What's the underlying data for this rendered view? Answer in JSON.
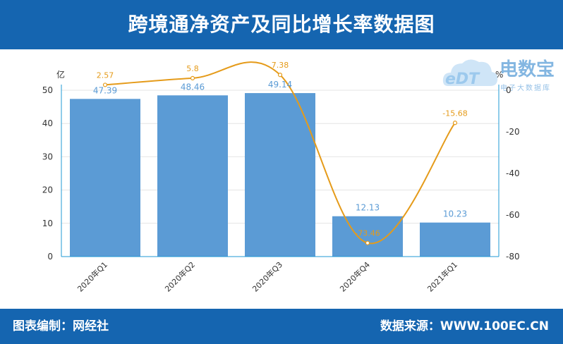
{
  "header": {
    "title": "跨境通净资产及同比增长率数据图"
  },
  "footer": {
    "left": "图表编制：网经社",
    "right": "数据来源：WWW.100EC.CN"
  },
  "logo": {
    "main": "电数宝",
    "sub": "电子大数据库",
    "edt": "eDT"
  },
  "colors": {
    "bar": "#5b9bd5",
    "line": "#e59b1a",
    "bar_label": "#5b9bd5",
    "line_label": "#e59b1a",
    "band": "#1565b0"
  },
  "chart_data": {
    "type": "bar",
    "categories": [
      "2020年Q1",
      "2020年Q2",
      "2020年Q3",
      "2020年Q4",
      "2021年Q1"
    ],
    "series": [
      {
        "type": "bar",
        "values": [
          47.39,
          48.46,
          49.14,
          12.13,
          10.23
        ],
        "axis": "left"
      },
      {
        "type": "line",
        "values": [
          2.57,
          5.8,
          7.38,
          -73.46,
          -15.68
        ],
        "axis": "right"
      }
    ],
    "y_left": {
      "unit": "亿",
      "min": 0,
      "max": 50,
      "ticks": [
        0,
        10,
        20,
        30,
        40,
        50
      ]
    },
    "y_right": {
      "unit": "%",
      "min": -80,
      "max": 0,
      "ticks": [
        -80,
        -60,
        -40,
        -20,
        0
      ]
    },
    "grid": true,
    "legend": "none"
  }
}
